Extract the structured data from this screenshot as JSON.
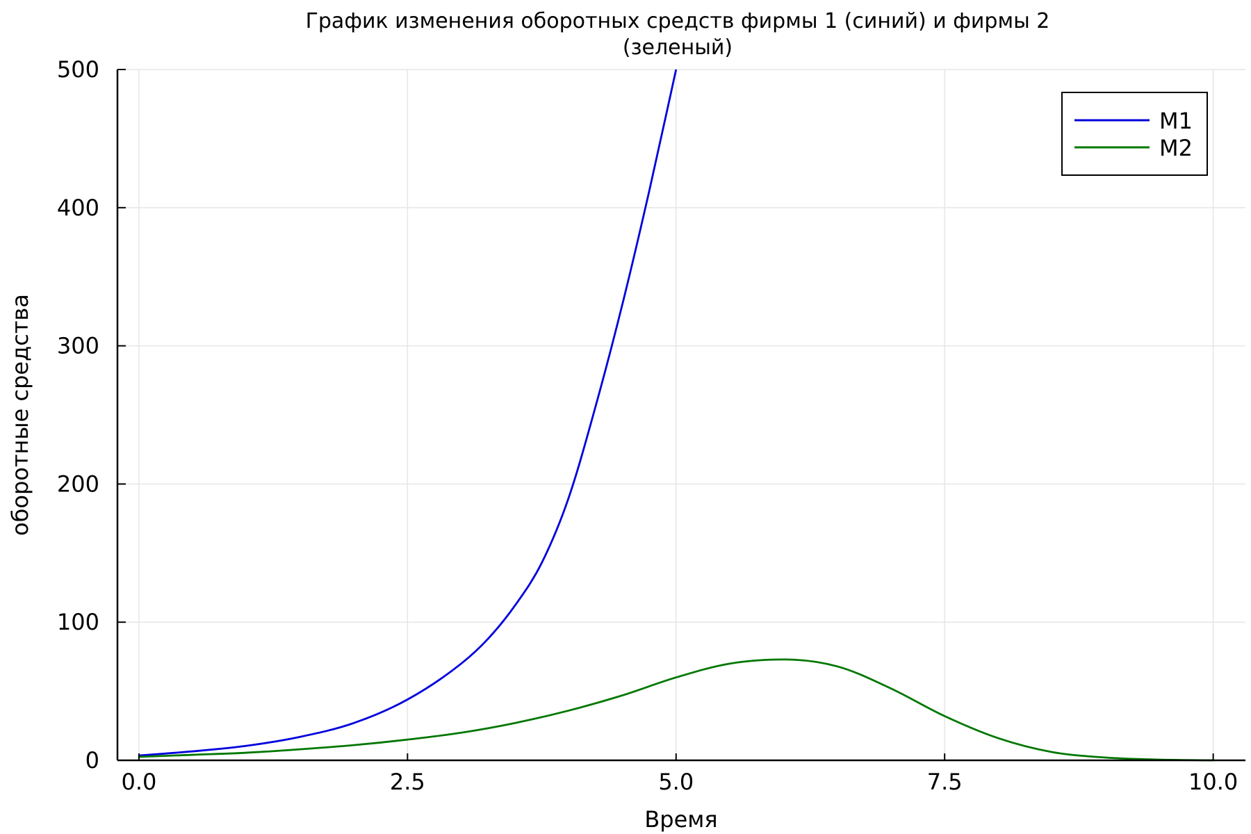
{
  "chart_data": {
    "type": "line",
    "title": [
      "График изменения оборотных средств фирмы 1 (синий) и фирмы 2",
      "(зеленый)"
    ],
    "xlabel": "Время",
    "ylabel": "оборотные средства",
    "xlim": [
      -0.2,
      10.3
    ],
    "ylim": [
      0,
      500
    ],
    "x_ticks": [
      0.0,
      2.5,
      5.0,
      7.5,
      10.0
    ],
    "x_tick_labels": [
      "0.0",
      "2.5",
      "5.0",
      "7.5",
      "10.0"
    ],
    "y_ticks": [
      0,
      100,
      200,
      300,
      400,
      500
    ],
    "y_tick_labels": [
      "0",
      "100",
      "200",
      "300",
      "400",
      "500"
    ],
    "grid": true,
    "legend_position": "top-right",
    "series": [
      {
        "name": "M1",
        "color": "#0000dd",
        "x": [
          0.0,
          0.5,
          1.0,
          1.5,
          2.0,
          2.5,
          3.0,
          3.25,
          3.5,
          3.75,
          4.0,
          4.25,
          4.5,
          4.75,
          5.0
        ],
        "y": [
          3.5,
          6.5,
          10.5,
          17,
          27,
          44,
          70,
          88,
          112,
          143,
          190,
          256,
          330,
          412,
          500
        ]
      },
      {
        "name": "M2",
        "color": "#007700",
        "x": [
          0.0,
          0.5,
          1.0,
          1.5,
          2.0,
          2.5,
          3.0,
          3.5,
          4.0,
          4.5,
          5.0,
          5.5,
          6.0,
          6.5,
          7.0,
          7.5,
          8.0,
          8.5,
          9.0,
          9.5,
          10.0
        ],
        "y": [
          2.5,
          4,
          5.5,
          8,
          11,
          15,
          20,
          27,
          36,
          47,
          60,
          70,
          73,
          68,
          52,
          32,
          16,
          6,
          2,
          0.5,
          0
        ]
      }
    ]
  }
}
